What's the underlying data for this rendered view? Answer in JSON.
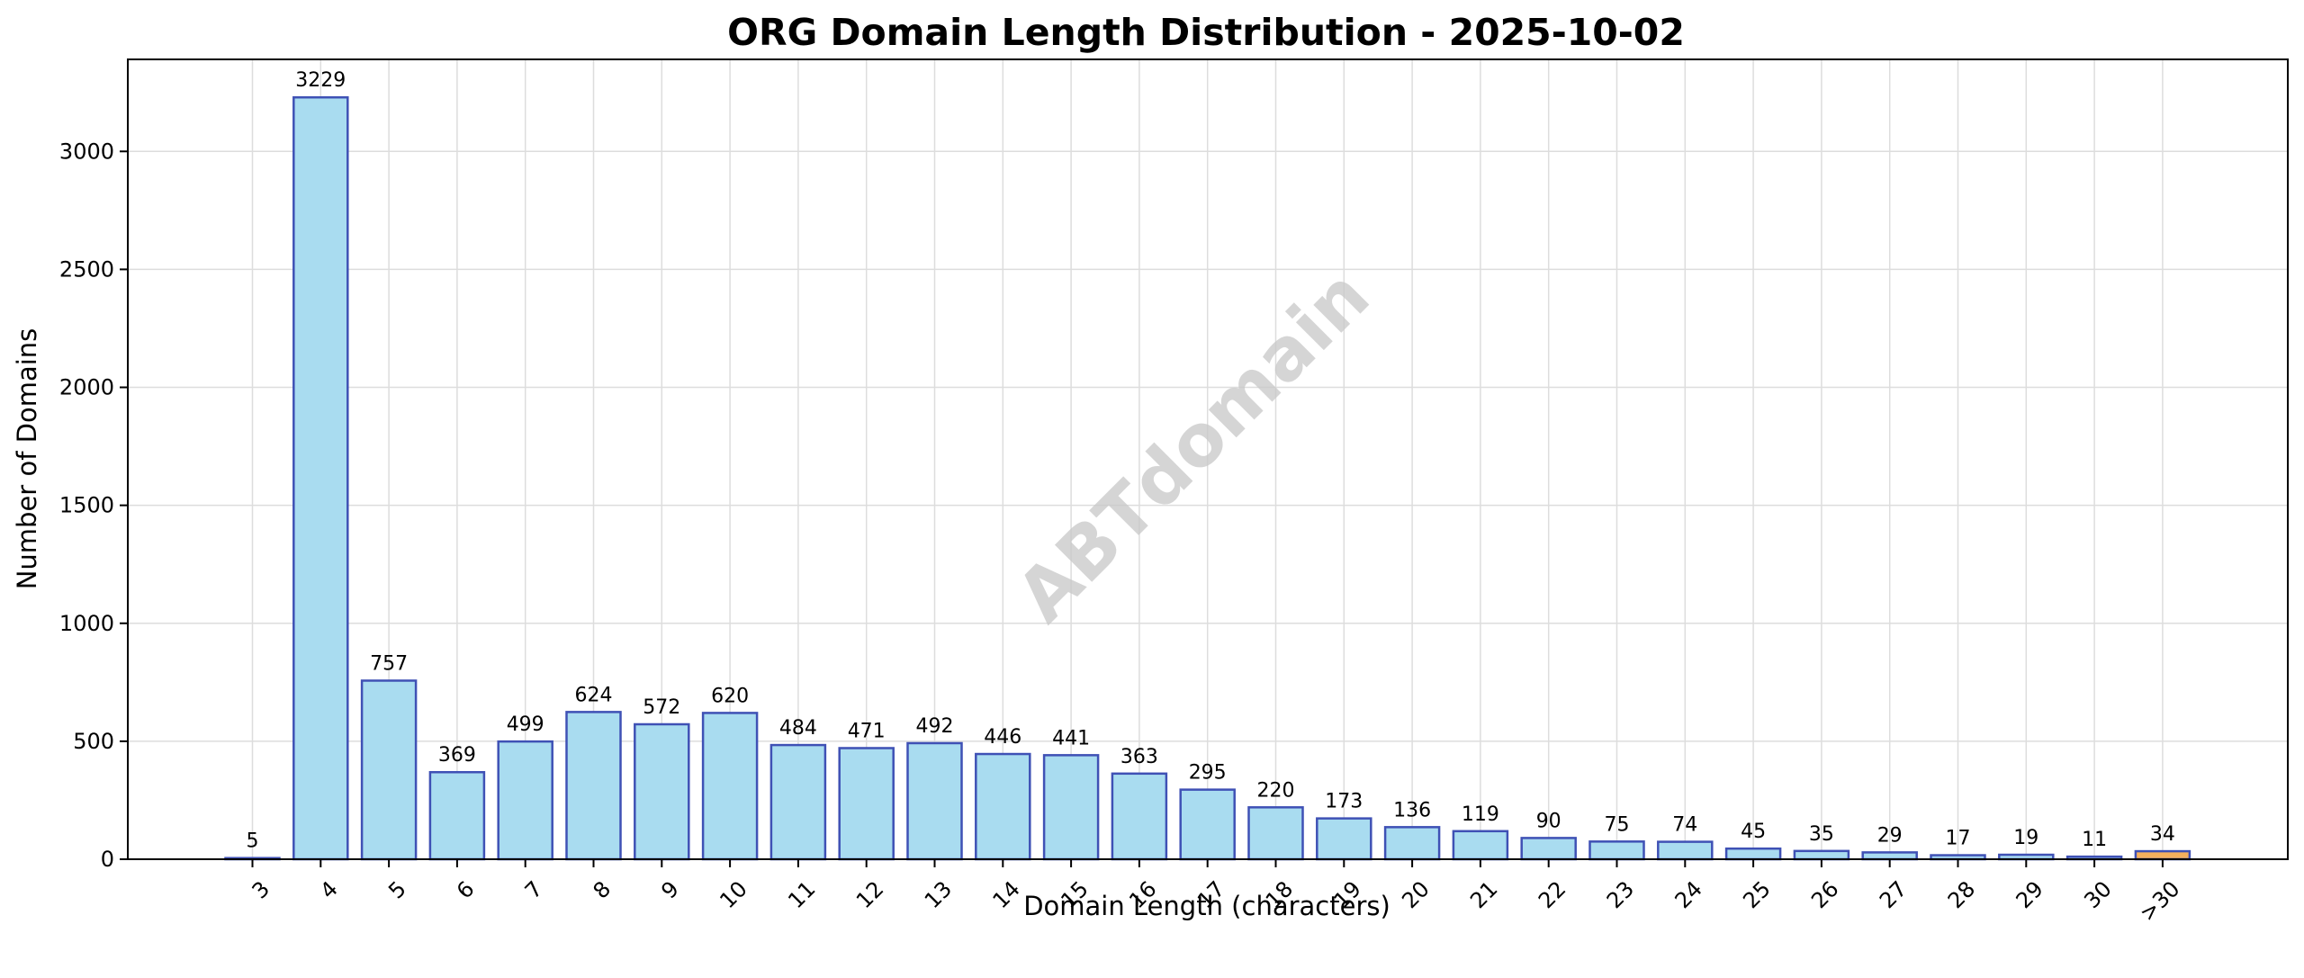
{
  "chart_data": {
    "type": "bar",
    "title": "ORG Domain Length Distribution - 2025-10-02",
    "xlabel": "Domain Length (characters)",
    "ylabel": "Number of Domains",
    "categories": [
      "3",
      "4",
      "5",
      "6",
      "7",
      "8",
      "9",
      "10",
      "11",
      "12",
      "13",
      "14",
      "15",
      "16",
      "17",
      "18",
      "19",
      "20",
      "21",
      "22",
      "23",
      "24",
      "25",
      "26",
      "27",
      "28",
      "29",
      "30",
      ">30"
    ],
    "values": [
      5,
      3229,
      757,
      369,
      499,
      624,
      572,
      620,
      484,
      471,
      492,
      446,
      441,
      363,
      295,
      220,
      173,
      136,
      119,
      90,
      75,
      74,
      45,
      35,
      29,
      17,
      19,
      11,
      34
    ],
    "ylim": [
      0,
      3390
    ],
    "yticks": [
      0,
      500,
      1000,
      1500,
      2000,
      2500,
      3000
    ],
    "grid": true,
    "watermark": "ABTdomain",
    "colors": {
      "bar_fill": "#a9dcf0",
      "bar_edge": "#3f51b5",
      "highlight_fill": "#f5b05c",
      "highlight_edge": "#3f51b5",
      "grid": "#dddddd"
    },
    "highlight_category": ">30"
  }
}
